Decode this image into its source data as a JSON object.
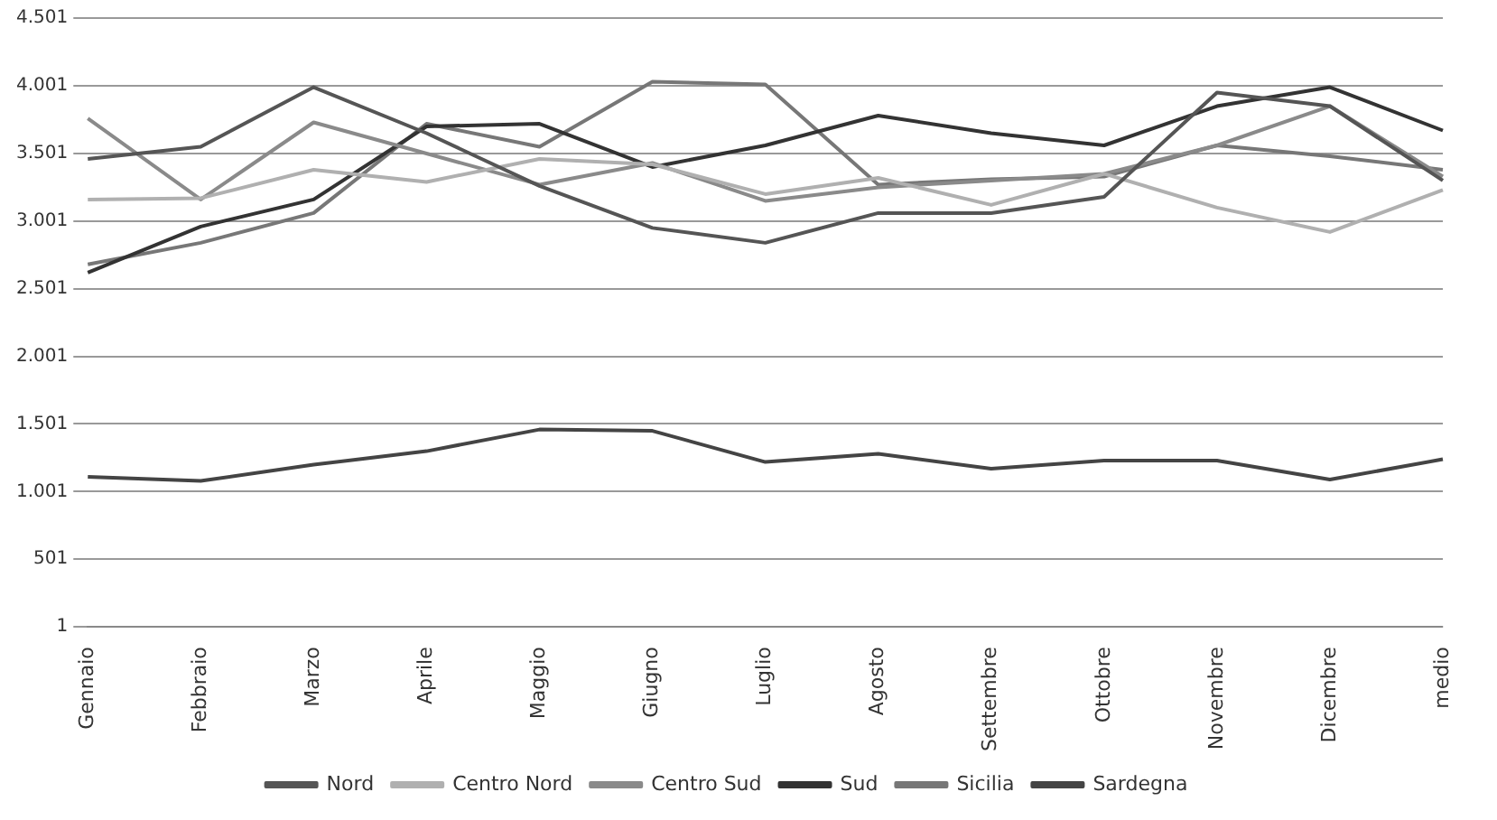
{
  "chart_data": {
    "type": "line",
    "categories": [
      "Gennaio",
      "Febbraio",
      "Marzo",
      "Aprile",
      "Maggio",
      "Giugno",
      "Luglio",
      "Agosto",
      "Settembre",
      "Ottobre",
      "Novembre",
      "Dicembre",
      "medio"
    ],
    "series": [
      {
        "name": "Nord",
        "color": "#555555",
        "values": [
          3460,
          3550,
          3990,
          3650,
          3260,
          2950,
          2840,
          3060,
          3060,
          3180,
          3950,
          3850,
          3300
        ]
      },
      {
        "name": "Centro Nord",
        "color": "#b0b0b0",
        "values": [
          3160,
          3170,
          3380,
          3290,
          3460,
          3420,
          3200,
          3320,
          3120,
          3350,
          3100,
          2920,
          3230
        ]
      },
      {
        "name": "Centro Sud",
        "color": "#8a8a8a",
        "values": [
          3760,
          3160,
          3730,
          3500,
          3270,
          3430,
          3150,
          3250,
          3300,
          3350,
          3560,
          3850,
          3330
        ]
      },
      {
        "name": "Sud",
        "color": "#333333",
        "values": [
          2620,
          2960,
          3160,
          3700,
          3720,
          3400,
          3560,
          3780,
          3650,
          3560,
          3850,
          3990,
          3670
        ]
      },
      {
        "name": "Sicilia",
        "color": "#777777",
        "values": [
          2680,
          2840,
          3060,
          3720,
          3550,
          4030,
          4010,
          3270,
          3310,
          3330,
          3560,
          3480,
          3380
        ]
      },
      {
        "name": "Sardegna",
        "color": "#444444",
        "values": [
          1110,
          1080,
          1200,
          1300,
          1460,
          1450,
          1220,
          1280,
          1170,
          1230,
          1230,
          1090,
          1240
        ]
      }
    ],
    "ylim": [
      1,
      4501
    ],
    "yticks": [
      1,
      501,
      {
        "value": 1001,
        "label": "1.001"
      },
      {
        "value": 1501,
        "label": "1.501"
      },
      {
        "value": 2001,
        "label": "2.001"
      },
      {
        "value": 2501,
        "label": "2.501"
      },
      {
        "value": 3001,
        "label": "3.001"
      },
      {
        "value": 3501,
        "label": "3.501"
      },
      {
        "value": 4001,
        "label": "4.001"
      },
      {
        "value": 4501,
        "label": "4.501"
      }
    ],
    "grid": "y",
    "legend": "bottom",
    "marker": "none",
    "line_style": "solid"
  }
}
